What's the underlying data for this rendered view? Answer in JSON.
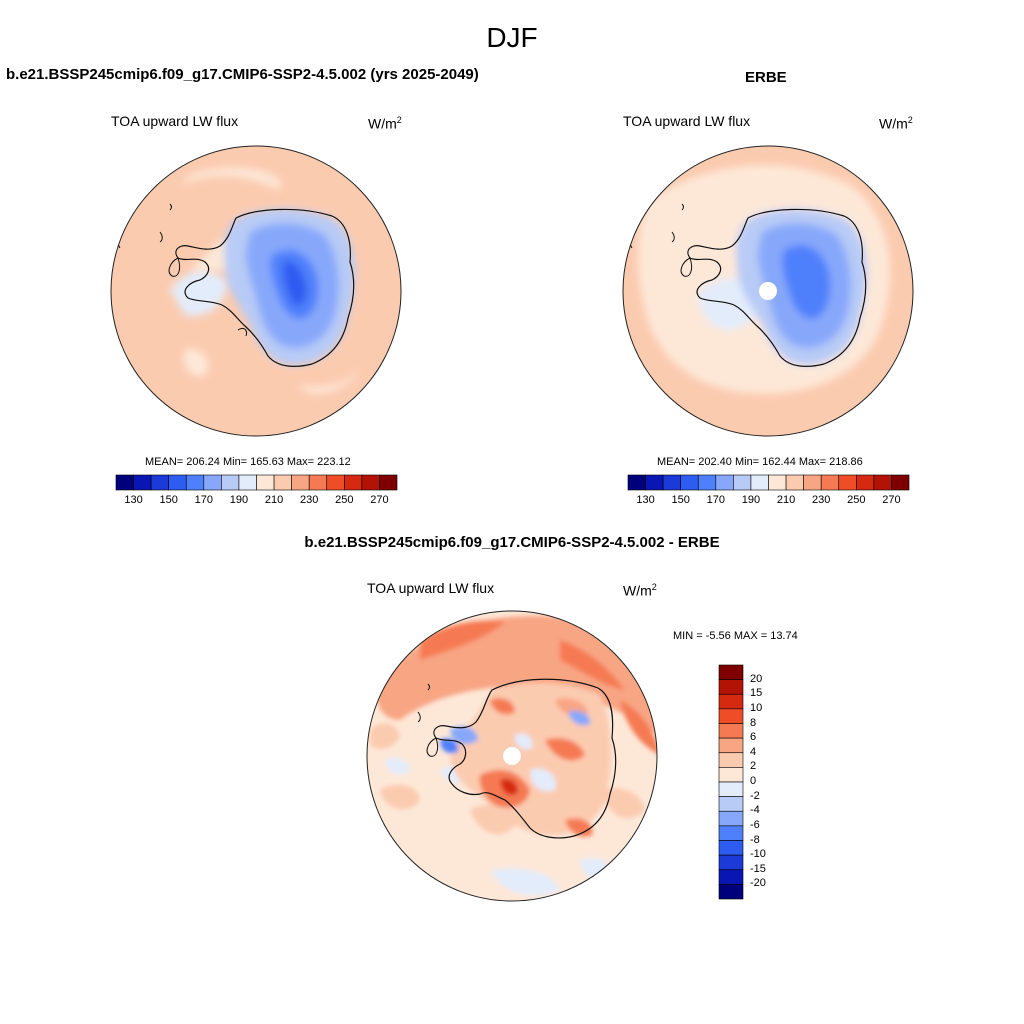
{
  "figure": {
    "title": "DJF",
    "units_base": "W/m",
    "units_exp": "2"
  },
  "colors": {
    "seq_palette": [
      "#00007c",
      "#0a16b4",
      "#1b3ad8",
      "#2f5cf0",
      "#4f80fb",
      "#87a8fa",
      "#b8cbf6",
      "#e3ecfb",
      "#fde8d8",
      "#fbcbb0",
      "#f8a584",
      "#f57a53",
      "#ee4d28",
      "#d52a10",
      "#b31305",
      "#7e0000"
    ],
    "diff_palette": [
      "#00007c",
      "#0a16b4",
      "#1b3ad8",
      "#2f5cf0",
      "#4f80fb",
      "#87a8fa",
      "#b8cbf6",
      "#e3ecfb",
      "#fde8d8",
      "#fbcbb0",
      "#f8a584",
      "#f57a53",
      "#ee4d28",
      "#d52a10",
      "#b31305",
      "#7e0000"
    ],
    "coastline": "#111111",
    "ocean_model": "#fbcbb0",
    "ocean_obs": "#fbcbb0"
  },
  "panels": {
    "model": {
      "title": "b.e21.BSSP245cmip6.f09_g17.CMIP6-SSP2-4.5.002 (yrs 2025-2049)",
      "variable": "TOA upward LW flux",
      "stats": "MEAN= 206.24  Min= 165.63  Max= 223.12",
      "mean": 206.24,
      "min": 165.63,
      "max": 223.12
    },
    "obs": {
      "title": "ERBE",
      "variable": "TOA upward LW flux",
      "stats": "MEAN= 202.40  Min= 162.44  Max= 218.86",
      "mean": 202.4,
      "min": 162.44,
      "max": 218.86
    },
    "diff": {
      "title": "b.e21.BSSP245cmip6.f09_g17.CMIP6-SSP2-4.5.002 - ERBE",
      "variable": "TOA upward LW flux",
      "stats": "MIN =  -5.56 MAX =  13.74",
      "min": -5.56,
      "max": 13.74
    }
  },
  "colorbar_seq": {
    "tick_labels": [
      "130",
      "150",
      "170",
      "190",
      "210",
      "230",
      "250",
      "270"
    ]
  },
  "colorbar_diff": {
    "tick_labels": [
      "20",
      "15",
      "10",
      "8",
      "6",
      "4",
      "2",
      "0",
      "-2",
      "-4",
      "-6",
      "-8",
      "-10",
      "-15",
      "-20"
    ]
  }
}
